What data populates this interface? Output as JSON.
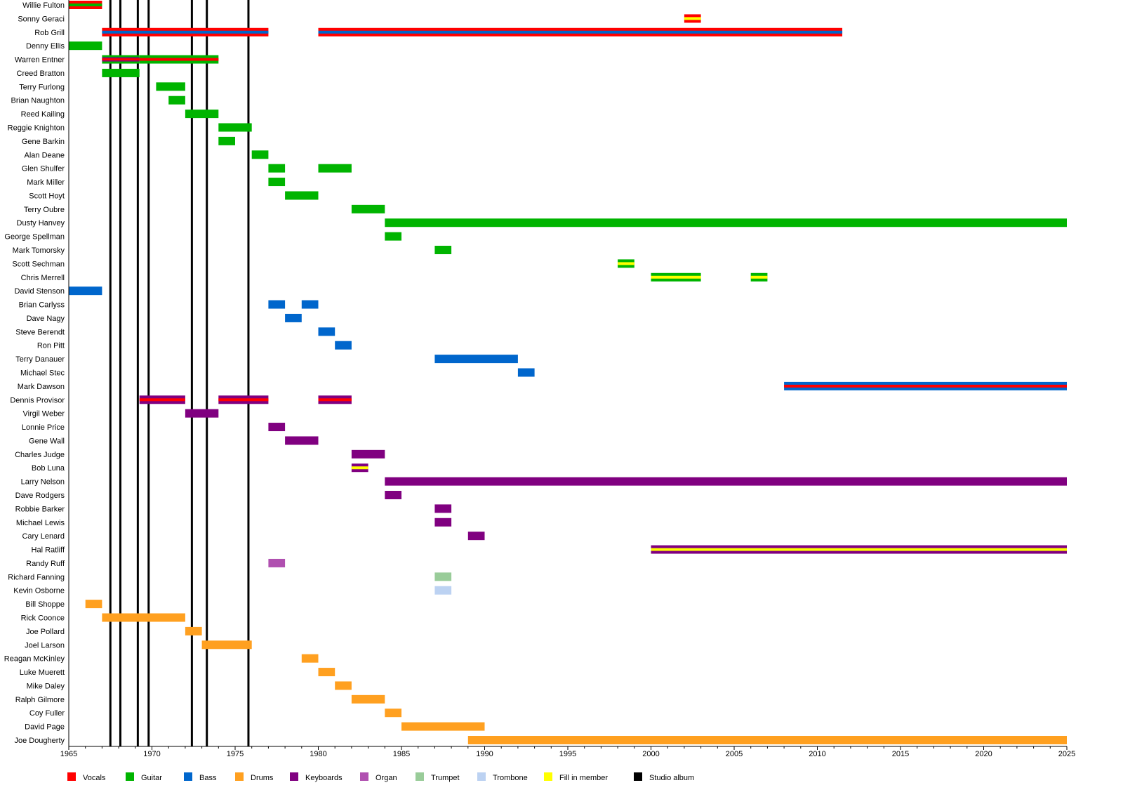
{
  "chart_data": {
    "type": "timeline",
    "xlim": [
      1965,
      2025
    ],
    "x_ticks": [
      1965,
      1970,
      1975,
      1980,
      1985,
      1990,
      1995,
      2000,
      2005,
      2010,
      2015,
      2020,
      2025
    ],
    "minor_tick_step": 1,
    "colors": {
      "Vocals": "#ff0000",
      "Guitar": "#00b400",
      "Bass": "#0066cc",
      "Drums": "#ffa020",
      "Keyboards": "#800080",
      "Organ": "#b050b0",
      "Trumpet": "#99cc99",
      "Trombone": "#bcd2f2",
      "Fill in member": "#ffff00",
      "Studio album": "#000000"
    },
    "legend": [
      "Vocals",
      "Guitar",
      "Bass",
      "Drums",
      "Keyboards",
      "Organ",
      "Trumpet",
      "Trombone",
      "Fill in member",
      "Studio album"
    ],
    "legend_position": "bottom",
    "studio_albums": [
      1967.5,
      1968.1,
      1969.15,
      1969.8,
      1972.4,
      1973.3,
      1975.8
    ],
    "members": [
      {
        "name": "Willie Fulton",
        "periods": [
          {
            "start": 1965,
            "end": 1967,
            "roles": [
              "Vocals",
              "Guitar"
            ]
          }
        ]
      },
      {
        "name": "Sonny Geraci",
        "periods": [
          {
            "start": 2002,
            "end": 2003,
            "roles": [
              "Vocals",
              "Fill in member"
            ]
          }
        ]
      },
      {
        "name": "Rob Grill",
        "periods": [
          {
            "start": 1967,
            "end": 1977,
            "roles": [
              "Vocals",
              "Bass"
            ]
          },
          {
            "start": 1980,
            "end": 2011.5,
            "roles": [
              "Vocals",
              "Bass"
            ]
          }
        ]
      },
      {
        "name": "Denny Ellis",
        "periods": [
          {
            "start": 1965,
            "end": 1967,
            "roles": [
              "Guitar"
            ]
          }
        ]
      },
      {
        "name": "Warren Entner",
        "periods": [
          {
            "start": 1967,
            "end": 1969.25,
            "roles": [
              "Guitar",
              "Keyboards",
              "Vocals"
            ]
          },
          {
            "start": 1969.25,
            "end": 1974,
            "roles": [
              "Guitar",
              "Vocals"
            ]
          }
        ]
      },
      {
        "name": "Creed Bratton",
        "periods": [
          {
            "start": 1967,
            "end": 1969.25,
            "roles": [
              "Guitar"
            ]
          }
        ]
      },
      {
        "name": "Terry Furlong",
        "periods": [
          {
            "start": 1970.25,
            "end": 1972,
            "roles": [
              "Guitar"
            ]
          }
        ]
      },
      {
        "name": "Brian Naughton",
        "periods": [
          {
            "start": 1971,
            "end": 1972,
            "roles": [
              "Guitar"
            ]
          }
        ]
      },
      {
        "name": "Reed Kailing",
        "periods": [
          {
            "start": 1972,
            "end": 1974,
            "roles": [
              "Guitar"
            ]
          }
        ]
      },
      {
        "name": "Reggie Knighton",
        "periods": [
          {
            "start": 1974,
            "end": 1976,
            "roles": [
              "Guitar"
            ]
          }
        ]
      },
      {
        "name": "Gene Barkin",
        "periods": [
          {
            "start": 1974,
            "end": 1975,
            "roles": [
              "Guitar"
            ]
          }
        ]
      },
      {
        "name": "Alan Deane",
        "periods": [
          {
            "start": 1976,
            "end": 1977,
            "roles": [
              "Guitar"
            ]
          }
        ]
      },
      {
        "name": "Glen Shulfer",
        "periods": [
          {
            "start": 1977,
            "end": 1978,
            "roles": [
              "Guitar"
            ]
          },
          {
            "start": 1980,
            "end": 1982,
            "roles": [
              "Guitar"
            ]
          }
        ]
      },
      {
        "name": "Mark Miller",
        "periods": [
          {
            "start": 1977,
            "end": 1978,
            "roles": [
              "Guitar"
            ]
          }
        ]
      },
      {
        "name": "Scott Hoyt",
        "periods": [
          {
            "start": 1978,
            "end": 1980,
            "roles": [
              "Guitar"
            ]
          }
        ]
      },
      {
        "name": "Terry Oubre",
        "periods": [
          {
            "start": 1982,
            "end": 1984,
            "roles": [
              "Guitar"
            ]
          }
        ]
      },
      {
        "name": "Dusty Hanvey",
        "periods": [
          {
            "start": 1984,
            "end": 2025,
            "roles": [
              "Guitar"
            ]
          }
        ]
      },
      {
        "name": "George Spellman",
        "periods": [
          {
            "start": 1984,
            "end": 1985,
            "roles": [
              "Guitar"
            ]
          }
        ]
      },
      {
        "name": "Mark Tomorsky",
        "periods": [
          {
            "start": 1987,
            "end": 1988,
            "roles": [
              "Guitar"
            ]
          }
        ]
      },
      {
        "name": "Scott Sechman",
        "periods": [
          {
            "start": 1998,
            "end": 1999,
            "roles": [
              "Guitar",
              "Fill in member"
            ]
          }
        ]
      },
      {
        "name": "Chris Merrell",
        "periods": [
          {
            "start": 2000,
            "end": 2003,
            "roles": [
              "Guitar",
              "Fill in member"
            ]
          },
          {
            "start": 2006,
            "end": 2007,
            "roles": [
              "Guitar",
              "Fill in member"
            ]
          }
        ]
      },
      {
        "name": "David Stenson",
        "periods": [
          {
            "start": 1965,
            "end": 1967,
            "roles": [
              "Bass"
            ]
          }
        ]
      },
      {
        "name": "Brian Carlyss",
        "periods": [
          {
            "start": 1977,
            "end": 1978,
            "roles": [
              "Bass"
            ]
          },
          {
            "start": 1979,
            "end": 1980,
            "roles": [
              "Bass"
            ]
          }
        ]
      },
      {
        "name": "Dave Nagy",
        "periods": [
          {
            "start": 1978,
            "end": 1979,
            "roles": [
              "Bass"
            ]
          }
        ]
      },
      {
        "name": "Steve Berendt",
        "periods": [
          {
            "start": 1980,
            "end": 1981,
            "roles": [
              "Bass"
            ]
          }
        ]
      },
      {
        "name": "Ron Pitt",
        "periods": [
          {
            "start": 1981,
            "end": 1982,
            "roles": [
              "Bass"
            ]
          }
        ]
      },
      {
        "name": "Terry Danauer",
        "periods": [
          {
            "start": 1987,
            "end": 1992,
            "roles": [
              "Bass"
            ]
          }
        ]
      },
      {
        "name": "Michael Stec",
        "periods": [
          {
            "start": 1992,
            "end": 1993,
            "roles": [
              "Bass"
            ]
          }
        ]
      },
      {
        "name": "Mark Dawson",
        "periods": [
          {
            "start": 2008,
            "end": 2025,
            "roles": [
              "Bass",
              "Vocals"
            ]
          }
        ]
      },
      {
        "name": "Dennis Provisor",
        "periods": [
          {
            "start": 1969.25,
            "end": 1972,
            "roles": [
              "Keyboards",
              "Vocals"
            ]
          },
          {
            "start": 1974,
            "end": 1977,
            "roles": [
              "Keyboards",
              "Vocals"
            ]
          },
          {
            "start": 1980,
            "end": 1982,
            "roles": [
              "Keyboards",
              "Vocals"
            ]
          }
        ]
      },
      {
        "name": "Virgil Weber",
        "periods": [
          {
            "start": 1972,
            "end": 1974,
            "roles": [
              "Keyboards"
            ]
          }
        ]
      },
      {
        "name": "Lonnie Price",
        "periods": [
          {
            "start": 1977,
            "end": 1978,
            "roles": [
              "Keyboards"
            ]
          }
        ]
      },
      {
        "name": "Gene Wall",
        "periods": [
          {
            "start": 1978,
            "end": 1980,
            "roles": [
              "Keyboards"
            ]
          }
        ]
      },
      {
        "name": "Charles Judge",
        "periods": [
          {
            "start": 1982,
            "end": 1984,
            "roles": [
              "Keyboards"
            ]
          }
        ]
      },
      {
        "name": "Bob Luna",
        "periods": [
          {
            "start": 1982,
            "end": 1983,
            "roles": [
              "Keyboards",
              "Fill in member"
            ]
          }
        ]
      },
      {
        "name": "Larry Nelson",
        "periods": [
          {
            "start": 1984,
            "end": 2025,
            "roles": [
              "Keyboards"
            ]
          }
        ]
      },
      {
        "name": "Dave Rodgers",
        "periods": [
          {
            "start": 1984,
            "end": 1985,
            "roles": [
              "Keyboards"
            ]
          }
        ]
      },
      {
        "name": "Robbie Barker",
        "periods": [
          {
            "start": 1987,
            "end": 1988,
            "roles": [
              "Keyboards"
            ]
          }
        ]
      },
      {
        "name": "Michael Lewis",
        "periods": [
          {
            "start": 1987,
            "end": 1988,
            "roles": [
              "Keyboards"
            ]
          }
        ]
      },
      {
        "name": "Cary Lenard",
        "periods": [
          {
            "start": 1989,
            "end": 1990,
            "roles": [
              "Keyboards"
            ]
          }
        ]
      },
      {
        "name": "Hal Ratliff",
        "periods": [
          {
            "start": 2000,
            "end": 2025,
            "roles": [
              "Keyboards",
              "Fill in member"
            ]
          }
        ]
      },
      {
        "name": "Randy Ruff",
        "periods": [
          {
            "start": 1977,
            "end": 1978,
            "roles": [
              "Organ"
            ]
          }
        ]
      },
      {
        "name": "Richard Fanning",
        "periods": [
          {
            "start": 1987,
            "end": 1988,
            "roles": [
              "Trumpet"
            ]
          }
        ]
      },
      {
        "name": "Kevin Osborne",
        "periods": [
          {
            "start": 1987,
            "end": 1988,
            "roles": [
              "Trombone"
            ]
          }
        ]
      },
      {
        "name": "Bill Shoppe",
        "periods": [
          {
            "start": 1966,
            "end": 1967,
            "roles": [
              "Drums"
            ]
          }
        ]
      },
      {
        "name": "Rick Coonce",
        "periods": [
          {
            "start": 1967,
            "end": 1972,
            "roles": [
              "Drums"
            ]
          }
        ]
      },
      {
        "name": "Joe Pollard",
        "periods": [
          {
            "start": 1972,
            "end": 1973,
            "roles": [
              "Drums"
            ]
          }
        ]
      },
      {
        "name": "Joel Larson",
        "periods": [
          {
            "start": 1973,
            "end": 1976,
            "roles": [
              "Drums"
            ]
          }
        ]
      },
      {
        "name": "Reagan McKinley",
        "periods": [
          {
            "start": 1979,
            "end": 1980,
            "roles": [
              "Drums"
            ]
          }
        ]
      },
      {
        "name": "Luke Muerett",
        "periods": [
          {
            "start": 1980,
            "end": 1981,
            "roles": [
              "Drums"
            ]
          }
        ]
      },
      {
        "name": "Mike Daley",
        "periods": [
          {
            "start": 1981,
            "end": 1982,
            "roles": [
              "Drums"
            ]
          }
        ]
      },
      {
        "name": "Ralph Gilmore",
        "periods": [
          {
            "start": 1982,
            "end": 1984,
            "roles": [
              "Drums"
            ]
          }
        ]
      },
      {
        "name": "Coy Fuller",
        "periods": [
          {
            "start": 1984,
            "end": 1985,
            "roles": [
              "Drums"
            ]
          }
        ]
      },
      {
        "name": "David Page",
        "periods": [
          {
            "start": 1985,
            "end": 1990,
            "roles": [
              "Drums"
            ]
          }
        ]
      },
      {
        "name": "Joe Dougherty",
        "periods": [
          {
            "start": 1989,
            "end": 2025,
            "roles": [
              "Drums"
            ]
          }
        ]
      }
    ]
  }
}
